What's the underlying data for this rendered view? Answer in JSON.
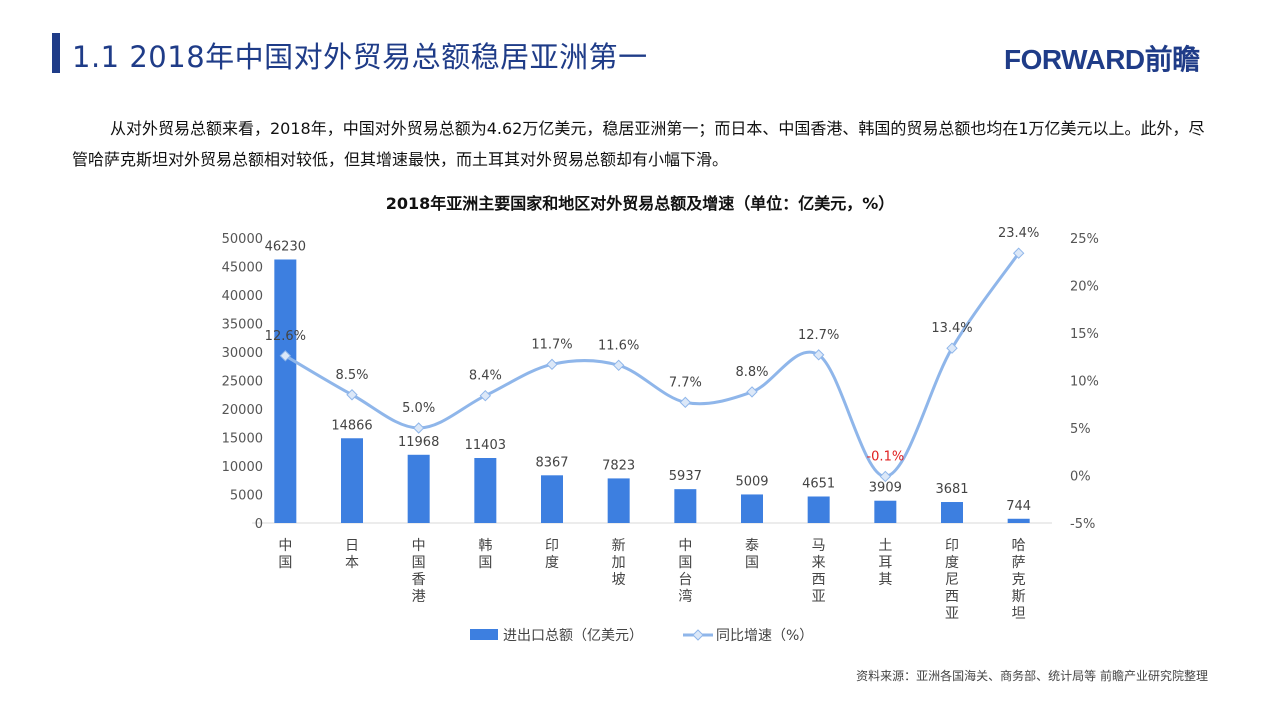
{
  "header": {
    "title": "1.1 2018年中国对外贸易总额稳居亚洲第一",
    "logo": "FORWARD前瞻"
  },
  "paragraph": "从对外贸易总额来看，2018年，中国对外贸易总额为4.62万亿美元，稳居亚洲第一；而日本、中国香港、韩国的贸易总额也均在1万亿美元以上。此外，尽管哈萨克斯坦对外贸易总额相对较低，但其增速最快，而土耳其对外贸易总额却有小幅下滑。",
  "source": "资料来源：亚洲各国海关、商务部、统计局等  前瞻产业研究院整理",
  "chart_data": {
    "type": "bar+line",
    "title": "2018年亚洲主要国家和地区对外贸易总额及增速（单位：亿美元，%）",
    "categories": [
      "中国",
      "日本",
      "中国香港",
      "韩国",
      "印度",
      "新加坡",
      "中国台湾",
      "泰国",
      "马来西亚",
      "土耳其",
      "印度尼西亚",
      "哈萨克斯坦"
    ],
    "series": [
      {
        "name": "进出口总额（亿美元）",
        "type": "bar",
        "axis": "left",
        "color": "#3d7fe0",
        "values": [
          46230,
          14866,
          11968,
          11403,
          8367,
          7823,
          5937,
          5009,
          4651,
          3909,
          3681,
          744
        ],
        "labels": [
          "46230",
          "14866",
          "11968",
          "11403",
          "8367",
          "7823",
          "5937",
          "5009",
          "4651",
          "3909",
          "3681",
          "744"
        ]
      },
      {
        "name": "同比增速（%）",
        "type": "line",
        "axis": "right",
        "color": "#8fb6ea",
        "values": [
          12.6,
          8.5,
          5.0,
          8.4,
          11.7,
          11.6,
          7.7,
          8.8,
          12.7,
          -0.1,
          13.4,
          23.4
        ],
        "labels": [
          "12.6%",
          "8.5%",
          "5.0%",
          "8.4%",
          "11.7%",
          "11.6%",
          "7.7%",
          "8.8%",
          "12.7%",
          "-0.1%",
          "13.4%",
          "23.4%"
        ]
      }
    ],
    "left_axis": {
      "range": [
        0,
        50000
      ],
      "ticks": [
        "0",
        "5000",
        "10000",
        "15000",
        "20000",
        "25000",
        "30000",
        "35000",
        "40000",
        "45000",
        "50000"
      ]
    },
    "right_axis": {
      "range": [
        -5,
        25
      ],
      "ticks": [
        "-5%",
        "0%",
        "5%",
        "10%",
        "15%",
        "20%",
        "25%"
      ]
    },
    "highlight_color": "#e02020",
    "legend_position": "bottom",
    "grid": false
  }
}
